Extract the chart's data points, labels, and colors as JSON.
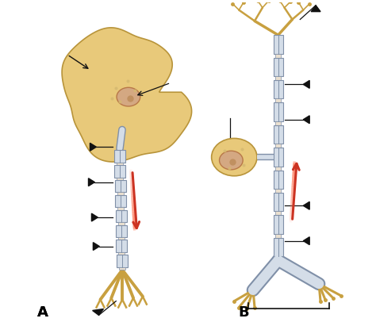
{
  "background_color": "#ffffff",
  "label_A": "A",
  "label_B": "B",
  "cell_body_color": "#E8C97A",
  "cell_body_edge_color": "#B8943A",
  "nucleus_color": "#D4A882",
  "nucleus_edge_color": "#B87848",
  "axon_color": "#D4DDE8",
  "axon_edge_color": "#8090A8",
  "node_color": "#EAE0D0",
  "dendrite_color": "#C8A040",
  "dendrite_edge_color": "#906820",
  "arrow_color": "#CC3322",
  "pointer_color": "#111111",
  "fig_width": 4.74,
  "fig_height": 4.11
}
